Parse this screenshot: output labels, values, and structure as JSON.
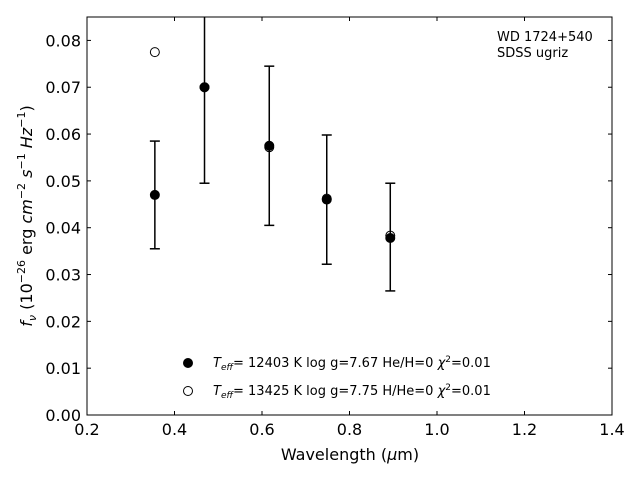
{
  "chart_data": {
    "type": "scatter",
    "xlabel": "Wavelength (μm)",
    "ylabel": "f_ν (10^-26 erg cm^-2 s^-1 Hz^-1)",
    "xlim": [
      0.2,
      1.4
    ],
    "ylim": [
      0.0,
      0.085
    ],
    "x_ticks": [
      0.2,
      0.4,
      0.6,
      0.8,
      1.0,
      1.2,
      1.4
    ],
    "x_tick_labels": [
      "0.2",
      "0.4",
      "0.6",
      "0.8",
      "1.0",
      "1.2",
      "1.4"
    ],
    "y_ticks": [
      0.0,
      0.01,
      0.02,
      0.03,
      0.04,
      0.05,
      0.06,
      0.07,
      0.08
    ],
    "y_tick_labels": [
      "0.00",
      "0.01",
      "0.02",
      "0.03",
      "0.04",
      "0.05",
      "0.06",
      "0.07",
      "0.08"
    ],
    "grid": false,
    "legend_placement": "bottom-center",
    "annotation": [
      "WD 1724+540",
      "SDSS ugriz"
    ],
    "observed": {
      "x": [
        0.3551,
        0.4686,
        0.6166,
        0.748,
        0.8932
      ],
      "y": [
        0.047,
        0.07,
        0.0575,
        0.046,
        0.038
      ],
      "yerr": [
        0.0115,
        0.0205,
        0.017,
        0.0138,
        0.0115
      ]
    },
    "series": [
      {
        "name": "T_eff= 12403 K  log g=7.67  He/H=0  χ²=0.01",
        "marker": "filled-circle",
        "color": "#000000",
        "x": [
          0.3551,
          0.4686,
          0.6166,
          0.748,
          0.8932
        ],
        "y": [
          0.047,
          0.07,
          0.0575,
          0.046,
          0.0378
        ]
      },
      {
        "name": "T_eff= 13425 K  log g=7.75  H/He=0  χ²=0.01",
        "marker": "open-circle",
        "color": "#000000",
        "x": [
          0.3551,
          0.4686,
          0.6166,
          0.748,
          0.8932
        ],
        "y": [
          0.0775,
          0.07,
          0.0572,
          0.0462,
          0.0383
        ]
      }
    ]
  }
}
